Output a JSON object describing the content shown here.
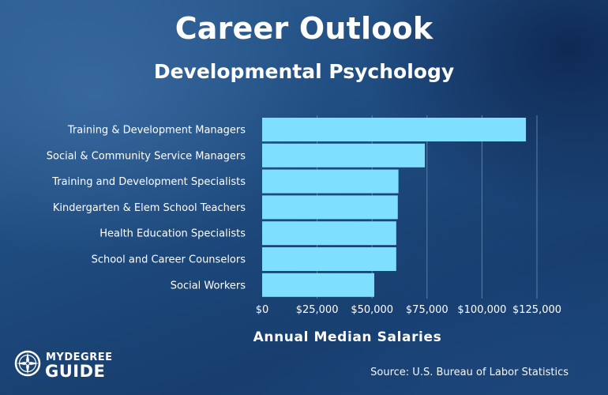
{
  "header": {
    "title": "Career Outlook",
    "subtitle": "Developmental Psychology"
  },
  "chart_data": {
    "type": "bar",
    "orientation": "horizontal",
    "title": "Career Outlook",
    "subtitle": "Developmental Psychology",
    "xlabel": "Annual Median Salaries",
    "ylabel": "",
    "categories": [
      "Training & Development Managers",
      "Social & Community Service Managers",
      "Training and Development Specialists",
      "Kindergarten & Elem School Teachers",
      "Health Education Specialists",
      "School and Career Counselors",
      "Social Workers"
    ],
    "values": [
      120000,
      74000,
      62000,
      61700,
      61000,
      61000,
      51000
    ],
    "xlim": [
      0,
      125000
    ],
    "x_ticks": [
      0,
      25000,
      50000,
      75000,
      100000,
      125000
    ],
    "x_tick_labels": [
      "$0",
      "$25,000",
      "$50,000",
      "$75,000",
      "$100,000",
      "$125,000"
    ],
    "grid": "vertical",
    "legend": "none",
    "bar_color": "#7fdfff",
    "grid_color": "#5b7fa8"
  },
  "branding": {
    "logo_line1": "MYDEGREE",
    "logo_line2": "GUIDE",
    "logo_icon": "compass-icon"
  },
  "footer": {
    "source": "Source: U.S. Bureau of Labor Statistics"
  }
}
